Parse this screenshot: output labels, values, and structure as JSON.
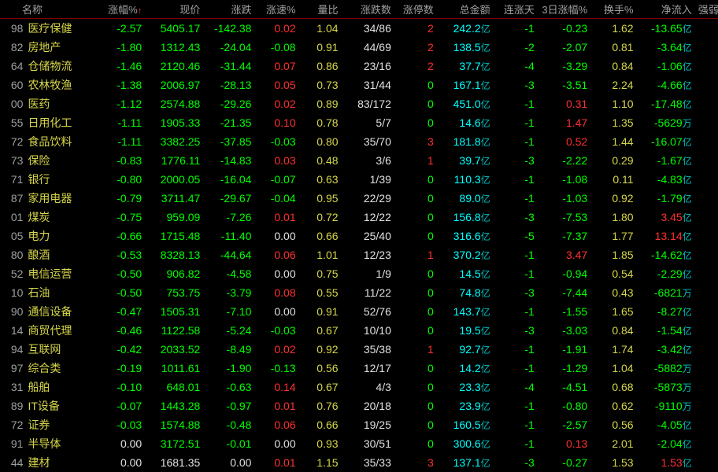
{
  "headers": {
    "name": "名称",
    "pct": "涨幅%",
    "price": "现价",
    "chg": "涨跌",
    "spd": "涨速%",
    "vol": "量比",
    "updown": "涨跌数",
    "limit": "涨停数",
    "amt": "总金额",
    "days": "连涨天",
    "pct3": "3日涨幅%",
    "turn": "换手%",
    "flow": "净流入",
    "str": "强弱"
  },
  "colors": {
    "bg": "#000000",
    "green": "#00ff00",
    "red": "#ff3030",
    "yellow": "#d6d64a",
    "cyan": "#00ffff",
    "white": "#e0e0e0",
    "gray": "#a0a0a0",
    "header_border": "#800000"
  },
  "amount_unit": "亿",
  "wan_unit": "万",
  "rows": [
    {
      "code": "98",
      "name": "医疗保健",
      "pct": "-2.57",
      "price": "5405.17",
      "chg": "-142.38",
      "spd": "0.02",
      "spdc": "red",
      "vol": "1.04",
      "updown": "34/86",
      "limit": "2",
      "limitc": "red",
      "amt": "242.2",
      "days": "-1",
      "pct3": "-0.23",
      "pct3c": "green",
      "turn": "1.62",
      "flow": "-13.65",
      "flowu": "亿",
      "flowc": "green"
    },
    {
      "code": "82",
      "name": "房地产",
      "pct": "-1.80",
      "price": "1312.43",
      "chg": "-24.04",
      "spd": "-0.08",
      "spdc": "green",
      "vol": "0.91",
      "updown": "44/69",
      "limit": "2",
      "limitc": "red",
      "amt": "138.5",
      "days": "-2",
      "pct3": "-2.07",
      "pct3c": "green",
      "turn": "0.81",
      "flow": "-3.64",
      "flowu": "亿",
      "flowc": "green"
    },
    {
      "code": "64",
      "name": "仓储物流",
      "pct": "-1.46",
      "price": "2120.46",
      "chg": "-31.44",
      "spd": "0.07",
      "spdc": "red",
      "vol": "0.86",
      "updown": "23/16",
      "limit": "2",
      "limitc": "red",
      "amt": "37.7",
      "days": "-4",
      "pct3": "-3.29",
      "pct3c": "green",
      "turn": "0.84",
      "flow": "-1.06",
      "flowu": "亿",
      "flowc": "green"
    },
    {
      "code": "60",
      "name": "农林牧渔",
      "pct": "-1.38",
      "price": "2006.97",
      "chg": "-28.13",
      "spd": "0.05",
      "spdc": "red",
      "vol": "0.73",
      "updown": "31/44",
      "limit": "0",
      "limitc": "green",
      "amt": "167.1",
      "days": "-3",
      "pct3": "-3.51",
      "pct3c": "green",
      "turn": "2.24",
      "flow": "-4.66",
      "flowu": "亿",
      "flowc": "green"
    },
    {
      "code": "00",
      "name": "医药",
      "pct": "-1.12",
      "price": "2574.88",
      "chg": "-29.26",
      "spd": "0.02",
      "spdc": "red",
      "vol": "0.89",
      "updown": "83/172",
      "limit": "0",
      "limitc": "green",
      "amt": "451.0",
      "days": "-1",
      "pct3": "0.31",
      "pct3c": "red",
      "turn": "1.10",
      "flow": "-17.48",
      "flowu": "亿",
      "flowc": "green"
    },
    {
      "code": "55",
      "name": "日用化工",
      "pct": "-1.11",
      "price": "1905.33",
      "chg": "-21.35",
      "spd": "0.10",
      "spdc": "red",
      "vol": "0.78",
      "updown": "5/7",
      "limit": "0",
      "limitc": "green",
      "amt": "14.6",
      "days": "-1",
      "pct3": "1.47",
      "pct3c": "red",
      "turn": "1.35",
      "flow": "-5629",
      "flowu": "万",
      "flowc": "green"
    },
    {
      "code": "72",
      "name": "食品饮料",
      "pct": "-1.11",
      "price": "3382.25",
      "chg": "-37.85",
      "spd": "-0.03",
      "spdc": "green",
      "vol": "0.80",
      "updown": "35/70",
      "limit": "3",
      "limitc": "red",
      "amt": "181.8",
      "days": "-1",
      "pct3": "0.52",
      "pct3c": "red",
      "turn": "1.44",
      "flow": "-16.07",
      "flowu": "亿",
      "flowc": "green"
    },
    {
      "code": "73",
      "name": "保险",
      "pct": "-0.83",
      "price": "1776.11",
      "chg": "-14.83",
      "spd": "0.03",
      "spdc": "red",
      "vol": "0.48",
      "updown": "3/6",
      "limit": "1",
      "limitc": "red",
      "amt": "39.7",
      "days": "-3",
      "pct3": "-2.22",
      "pct3c": "green",
      "turn": "0.29",
      "flow": "-1.67",
      "flowu": "亿",
      "flowc": "green"
    },
    {
      "code": "71",
      "name": "银行",
      "pct": "-0.80",
      "price": "2000.05",
      "chg": "-16.04",
      "spd": "-0.07",
      "spdc": "green",
      "vol": "0.63",
      "updown": "1/39",
      "limit": "0",
      "limitc": "green",
      "amt": "110.3",
      "days": "-1",
      "pct3": "-1.08",
      "pct3c": "green",
      "turn": "0.11",
      "flow": "-4.83",
      "flowu": "亿",
      "flowc": "green"
    },
    {
      "code": "87",
      "name": "家用电器",
      "pct": "-0.79",
      "price": "3711.47",
      "chg": "-29.67",
      "spd": "-0.04",
      "spdc": "green",
      "vol": "0.95",
      "updown": "22/29",
      "limit": "0",
      "limitc": "green",
      "amt": "89.0",
      "days": "-1",
      "pct3": "-1.03",
      "pct3c": "green",
      "turn": "0.92",
      "flow": "-1.79",
      "flowu": "亿",
      "flowc": "green"
    },
    {
      "code": "01",
      "name": "煤炭",
      "pct": "-0.75",
      "price": "959.09",
      "chg": "-7.26",
      "spd": "0.01",
      "spdc": "red",
      "vol": "0.72",
      "updown": "12/22",
      "limit": "0",
      "limitc": "green",
      "amt": "156.8",
      "days": "-3",
      "pct3": "-7.53",
      "pct3c": "green",
      "turn": "1.80",
      "flow": "3.45",
      "flowu": "亿",
      "flowc": "red"
    },
    {
      "code": "05",
      "name": "电力",
      "pct": "-0.66",
      "price": "1715.48",
      "chg": "-11.40",
      "spd": "0.00",
      "spdc": "white",
      "vol": "0.66",
      "updown": "25/40",
      "limit": "0",
      "limitc": "green",
      "amt": "316.6",
      "days": "-5",
      "pct3": "-7.37",
      "pct3c": "green",
      "turn": "1.77",
      "flow": "13.14",
      "flowu": "亿",
      "flowc": "red"
    },
    {
      "code": "80",
      "name": "酿酒",
      "pct": "-0.53",
      "price": "8328.13",
      "chg": "-44.64",
      "spd": "0.06",
      "spdc": "red",
      "vol": "1.01",
      "updown": "12/23",
      "limit": "1",
      "limitc": "red",
      "amt": "370.2",
      "days": "-1",
      "pct3": "3.47",
      "pct3c": "red",
      "turn": "1.85",
      "flow": "-14.62",
      "flowu": "亿",
      "flowc": "green"
    },
    {
      "code": "52",
      "name": "电信运营",
      "pct": "-0.50",
      "price": "906.82",
      "chg": "-4.58",
      "spd": "0.00",
      "spdc": "white",
      "vol": "0.75",
      "updown": "1/9",
      "limit": "0",
      "limitc": "green",
      "amt": "14.5",
      "days": "-1",
      "pct3": "-0.94",
      "pct3c": "green",
      "turn": "0.54",
      "flow": "-2.29",
      "flowu": "亿",
      "flowc": "green"
    },
    {
      "code": "10",
      "name": "石油",
      "pct": "-0.50",
      "price": "753.75",
      "chg": "-3.79",
      "spd": "0.08",
      "spdc": "red",
      "vol": "0.55",
      "updown": "11/22",
      "limit": "0",
      "limitc": "green",
      "amt": "74.8",
      "days": "-3",
      "pct3": "-7.44",
      "pct3c": "green",
      "turn": "0.43",
      "flow": "-6821",
      "flowu": "万",
      "flowc": "green"
    },
    {
      "code": "90",
      "name": "通信设备",
      "pct": "-0.47",
      "price": "1505.31",
      "chg": "-7.10",
      "spd": "0.00",
      "spdc": "white",
      "vol": "0.91",
      "updown": "52/76",
      "limit": "0",
      "limitc": "green",
      "amt": "143.7",
      "days": "-1",
      "pct3": "-1.55",
      "pct3c": "green",
      "turn": "1.65",
      "flow": "-8.27",
      "flowu": "亿",
      "flowc": "green"
    },
    {
      "code": "14",
      "name": "商贸代理",
      "pct": "-0.46",
      "price": "1122.58",
      "chg": "-5.24",
      "spd": "-0.03",
      "spdc": "green",
      "vol": "0.67",
      "updown": "10/10",
      "limit": "0",
      "limitc": "green",
      "amt": "19.5",
      "days": "-3",
      "pct3": "-3.03",
      "pct3c": "green",
      "turn": "0.84",
      "flow": "-1.54",
      "flowu": "亿",
      "flowc": "green"
    },
    {
      "code": "94",
      "name": "互联网",
      "pct": "-0.42",
      "price": "2033.52",
      "chg": "-8.49",
      "spd": "0.02",
      "spdc": "red",
      "vol": "0.92",
      "updown": "35/38",
      "limit": "1",
      "limitc": "red",
      "amt": "92.7",
      "days": "-1",
      "pct3": "-1.91",
      "pct3c": "green",
      "turn": "1.74",
      "flow": "-3.42",
      "flowu": "亿",
      "flowc": "green"
    },
    {
      "code": "97",
      "name": "综合类",
      "pct": "-0.19",
      "price": "1011.61",
      "chg": "-1.90",
      "spd": "-0.13",
      "spdc": "green",
      "vol": "0.56",
      "updown": "12/17",
      "limit": "0",
      "limitc": "green",
      "amt": "14.2",
      "days": "-1",
      "pct3": "-1.29",
      "pct3c": "green",
      "turn": "1.04",
      "flow": "-5882",
      "flowu": "万",
      "flowc": "green"
    },
    {
      "code": "31",
      "name": "船舶",
      "pct": "-0.10",
      "price": "648.01",
      "chg": "-0.63",
      "spd": "0.14",
      "spdc": "red",
      "vol": "0.67",
      "updown": "4/3",
      "limit": "0",
      "limitc": "green",
      "amt": "23.3",
      "days": "-4",
      "pct3": "-4.51",
      "pct3c": "green",
      "turn": "0.68",
      "flow": "-5873",
      "flowu": "万",
      "flowc": "green"
    },
    {
      "code": "89",
      "name": "IT设备",
      "pct": "-0.07",
      "price": "1443.28",
      "chg": "-0.97",
      "spd": "0.01",
      "spdc": "red",
      "vol": "0.76",
      "updown": "20/18",
      "limit": "0",
      "limitc": "green",
      "amt": "23.9",
      "days": "-1",
      "pct3": "-0.80",
      "pct3c": "green",
      "turn": "0.62",
      "flow": "-9110",
      "flowu": "万",
      "flowc": "green"
    },
    {
      "code": "72",
      "name": "证券",
      "pct": "-0.03",
      "price": "1574.88",
      "chg": "-0.48",
      "spd": "0.06",
      "spdc": "red",
      "vol": "0.66",
      "updown": "19/25",
      "limit": "0",
      "limitc": "green",
      "amt": "160.5",
      "days": "-1",
      "pct3": "-2.57",
      "pct3c": "green",
      "turn": "0.56",
      "flow": "-4.05",
      "flowu": "亿",
      "flowc": "green"
    },
    {
      "code": "91",
      "name": "半导体",
      "pct": "0.00",
      "pctc": "white",
      "price": "3172.51",
      "chg": "-0.01",
      "spd": "0.00",
      "spdc": "white",
      "vol": "0.93",
      "updown": "30/51",
      "limit": "0",
      "limitc": "green",
      "amt": "300.6",
      "days": "-1",
      "pct3": "0.13",
      "pct3c": "red",
      "turn": "2.01",
      "flow": "-2.04",
      "flowu": "亿",
      "flowc": "green"
    },
    {
      "code": "44",
      "name": "建材",
      "pct": "0.00",
      "pctc": "white",
      "price": "1681.35",
      "pricec": "white",
      "chg": "0.00",
      "chgc": "white",
      "spd": "0.01",
      "spdc": "red",
      "vol": "1.15",
      "updown": "35/33",
      "limit": "3",
      "limitc": "red",
      "amt": "137.1",
      "days": "-3",
      "pct3": "-0.27",
      "pct3c": "green",
      "turn": "1.53",
      "flow": "1.53",
      "flowu": "亿",
      "flowc": "red"
    }
  ]
}
